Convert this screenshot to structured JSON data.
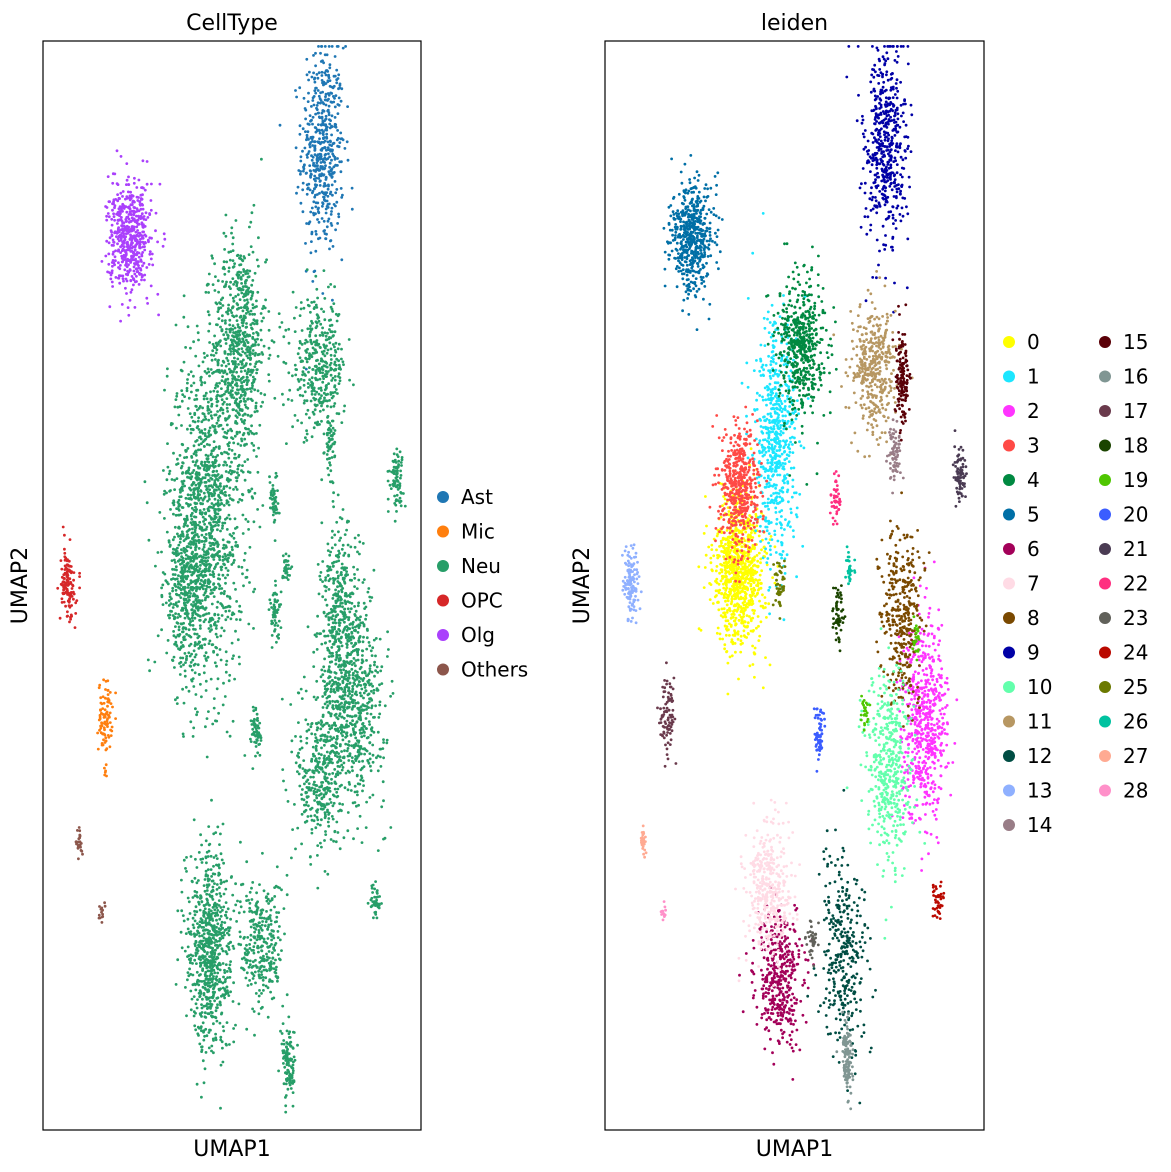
{
  "chart_data": [
    {
      "type": "scatter",
      "title": "CellType",
      "xlabel": "UMAP1",
      "ylabel": "UMAP2",
      "xlim": [
        0,
        10
      ],
      "ylim": [
        0,
        10
      ],
      "grid": false,
      "legend_position": "right",
      "series": [
        {
          "name": "Ast",
          "color": "#1f77b4",
          "clusters": [
            {
              "x": 7.4,
              "y": 9.0,
              "sx": 0.28,
              "sy": 0.48,
              "n": 520
            }
          ]
        },
        {
          "name": "Mic",
          "color": "#ff7f0e",
          "clusters": [
            {
              "x": 1.65,
              "y": 3.8,
              "sx": 0.09,
              "sy": 0.16,
              "n": 90
            },
            {
              "x": 1.65,
              "y": 3.3,
              "sx": 0.02,
              "sy": 0.05,
              "n": 6
            }
          ]
        },
        {
          "name": "Neu",
          "color": "#279e68",
          "clusters": [
            {
              "x": 5.2,
              "y": 7.2,
              "sx": 0.35,
              "sy": 0.5,
              "n": 700
            },
            {
              "x": 4.3,
              "y": 5.6,
              "sx": 0.5,
              "sy": 0.75,
              "n": 1300
            },
            {
              "x": 3.8,
              "y": 4.9,
              "sx": 0.3,
              "sy": 0.35,
              "n": 300
            },
            {
              "x": 7.3,
              "y": 7.0,
              "sx": 0.35,
              "sy": 0.3,
              "n": 380
            },
            {
              "x": 7.6,
              "y": 6.3,
              "sx": 0.07,
              "sy": 0.15,
              "n": 60
            },
            {
              "x": 9.35,
              "y": 6.0,
              "sx": 0.09,
              "sy": 0.13,
              "n": 80
            },
            {
              "x": 6.1,
              "y": 5.8,
              "sx": 0.06,
              "sy": 0.12,
              "n": 50
            },
            {
              "x": 6.45,
              "y": 5.15,
              "sx": 0.05,
              "sy": 0.09,
              "n": 30
            },
            {
              "x": 6.15,
              "y": 4.75,
              "sx": 0.07,
              "sy": 0.12,
              "n": 55
            },
            {
              "x": 5.65,
              "y": 3.65,
              "sx": 0.07,
              "sy": 0.12,
              "n": 60
            },
            {
              "x": 7.85,
              "y": 4.75,
              "sx": 0.26,
              "sy": 0.4,
              "n": 360
            },
            {
              "x": 8.15,
              "y": 3.9,
              "sx": 0.45,
              "sy": 0.45,
              "n": 700
            },
            {
              "x": 7.3,
              "y": 3.2,
              "sx": 0.3,
              "sy": 0.35,
              "n": 300
            },
            {
              "x": 8.8,
              "y": 2.1,
              "sx": 0.07,
              "sy": 0.08,
              "n": 40
            },
            {
              "x": 4.4,
              "y": 2.0,
              "sx": 0.3,
              "sy": 0.35,
              "n": 350
            },
            {
              "x": 4.4,
              "y": 1.4,
              "sx": 0.3,
              "sy": 0.35,
              "n": 400
            },
            {
              "x": 5.8,
              "y": 1.7,
              "sx": 0.28,
              "sy": 0.3,
              "n": 300
            },
            {
              "x": 6.5,
              "y": 0.6,
              "sx": 0.09,
              "sy": 0.17,
              "n": 110
            }
          ]
        },
        {
          "name": "OPC",
          "color": "#d62728",
          "clusters": [
            {
              "x": 0.65,
              "y": 5.0,
              "sx": 0.1,
              "sy": 0.16,
              "n": 130
            }
          ]
        },
        {
          "name": "Olg",
          "color": "#aa40fc",
          "clusters": [
            {
              "x": 2.3,
              "y": 8.2,
              "sx": 0.28,
              "sy": 0.25,
              "n": 540
            }
          ]
        },
        {
          "name": "Others",
          "color": "#8c564b",
          "clusters": [
            {
              "x": 0.95,
              "y": 2.65,
              "sx": 0.04,
              "sy": 0.07,
              "n": 25
            },
            {
              "x": 1.55,
              "y": 2.0,
              "sx": 0.03,
              "sy": 0.05,
              "n": 15
            }
          ]
        }
      ]
    },
    {
      "type": "scatter",
      "title": "leiden",
      "xlabel": "UMAP1",
      "ylabel": "UMAP2",
      "xlim": [
        0,
        10
      ],
      "ylim": [
        0,
        10
      ],
      "grid": false,
      "legend_position": "right",
      "series": [
        {
          "name": "0",
          "color": "#ffff00",
          "clusters": [
            {
              "x": 3.55,
              "y": 5.15,
              "sx": 0.33,
              "sy": 0.35,
              "n": 900
            }
          ]
        },
        {
          "name": "1",
          "color": "#1ce6ff",
          "clusters": [
            {
              "x": 4.5,
              "y": 6.3,
              "sx": 0.28,
              "sy": 0.55,
              "n": 600
            }
          ]
        },
        {
          "name": "2",
          "color": "#ff34ff",
          "clusters": [
            {
              "x": 8.45,
              "y": 3.75,
              "sx": 0.3,
              "sy": 0.45,
              "n": 600
            }
          ]
        },
        {
          "name": "3",
          "color": "#ff4a46",
          "clusters": [
            {
              "x": 3.55,
              "y": 5.9,
              "sx": 0.25,
              "sy": 0.28,
              "n": 500
            }
          ]
        },
        {
          "name": "4",
          "color": "#008941",
          "clusters": [
            {
              "x": 5.2,
              "y": 7.2,
              "sx": 0.3,
              "sy": 0.32,
              "n": 520
            }
          ]
        },
        {
          "name": "5",
          "color": "#006fa6",
          "clusters": [
            {
              "x": 2.3,
              "y": 8.2,
              "sx": 0.28,
              "sy": 0.25,
              "n": 540
            }
          ]
        },
        {
          "name": "6",
          "color": "#a30059",
          "clusters": [
            {
              "x": 4.6,
              "y": 1.4,
              "sx": 0.3,
              "sy": 0.3,
              "n": 420
            }
          ]
        },
        {
          "name": "7",
          "color": "#ffdbe5",
          "clusters": [
            {
              "x": 4.3,
              "y": 2.2,
              "sx": 0.3,
              "sy": 0.3,
              "n": 380
            }
          ]
        },
        {
          "name": "8",
          "color": "#7a4900",
          "clusters": [
            {
              "x": 7.85,
              "y": 4.75,
              "sx": 0.26,
              "sy": 0.4,
              "n": 360
            }
          ]
        },
        {
          "name": "9",
          "color": "#0000a6",
          "clusters": [
            {
              "x": 7.4,
              "y": 9.0,
              "sx": 0.28,
              "sy": 0.48,
              "n": 520
            }
          ]
        },
        {
          "name": "10",
          "color": "#63ffac",
          "clusters": [
            {
              "x": 7.5,
              "y": 3.3,
              "sx": 0.3,
              "sy": 0.45,
              "n": 450
            }
          ]
        },
        {
          "name": "11",
          "color": "#b79762",
          "clusters": [
            {
              "x": 7.1,
              "y": 7.0,
              "sx": 0.3,
              "sy": 0.3,
              "n": 400
            }
          ]
        },
        {
          "name": "12",
          "color": "#004d43",
          "clusters": [
            {
              "x": 6.3,
              "y": 1.6,
              "sx": 0.32,
              "sy": 0.45,
              "n": 330
            }
          ]
        },
        {
          "name": "13",
          "color": "#8fb0ff",
          "clusters": [
            {
              "x": 0.7,
              "y": 5.0,
              "sx": 0.1,
              "sy": 0.16,
              "n": 130
            }
          ]
        },
        {
          "name": "14",
          "color": "#997d87",
          "clusters": [
            {
              "x": 7.65,
              "y": 6.2,
              "sx": 0.08,
              "sy": 0.15,
              "n": 75
            }
          ]
        },
        {
          "name": "15",
          "color": "#5a0007",
          "clusters": [
            {
              "x": 7.85,
              "y": 6.95,
              "sx": 0.09,
              "sy": 0.22,
              "n": 150
            }
          ]
        },
        {
          "name": "16",
          "color": "#809693",
          "clusters": [
            {
              "x": 6.4,
              "y": 0.65,
              "sx": 0.08,
              "sy": 0.17,
              "n": 110
            }
          ]
        },
        {
          "name": "17",
          "color": "#6a3a4c",
          "clusters": [
            {
              "x": 1.65,
              "y": 3.8,
              "sx": 0.09,
              "sy": 0.16,
              "n": 90
            }
          ]
        },
        {
          "name": "18",
          "color": "#1b4400",
          "clusters": [
            {
              "x": 6.15,
              "y": 4.75,
              "sx": 0.07,
              "sy": 0.12,
              "n": 55
            }
          ]
        },
        {
          "name": "19",
          "color": "#4fc601",
          "clusters": [
            {
              "x": 8.2,
              "y": 4.5,
              "sx": 0.05,
              "sy": 0.07,
              "n": 25
            },
            {
              "x": 6.85,
              "y": 3.85,
              "sx": 0.05,
              "sy": 0.08,
              "n": 25
            }
          ]
        },
        {
          "name": "20",
          "color": "#3b5dff",
          "clusters": [
            {
              "x": 5.65,
              "y": 3.65,
              "sx": 0.07,
              "sy": 0.12,
              "n": 60
            }
          ]
        },
        {
          "name": "21",
          "color": "#4a3b53",
          "clusters": [
            {
              "x": 9.35,
              "y": 6.0,
              "sx": 0.09,
              "sy": 0.13,
              "n": 80
            }
          ]
        },
        {
          "name": "22",
          "color": "#ff2f80",
          "clusters": [
            {
              "x": 6.1,
              "y": 5.8,
              "sx": 0.06,
              "sy": 0.12,
              "n": 50
            }
          ]
        },
        {
          "name": "23",
          "color": "#61615a",
          "clusters": [
            {
              "x": 5.45,
              "y": 1.75,
              "sx": 0.07,
              "sy": 0.09,
              "n": 35
            }
          ]
        },
        {
          "name": "24",
          "color": "#ba0900",
          "clusters": [
            {
              "x": 8.8,
              "y": 2.1,
              "sx": 0.07,
              "sy": 0.08,
              "n": 40
            }
          ]
        },
        {
          "name": "25",
          "color": "#6b7900",
          "clusters": [
            {
              "x": 4.6,
              "y": 5.0,
              "sx": 0.06,
              "sy": 0.12,
              "n": 45
            }
          ]
        },
        {
          "name": "26",
          "color": "#00c2a0",
          "clusters": [
            {
              "x": 6.45,
              "y": 5.15,
              "sx": 0.05,
              "sy": 0.09,
              "n": 30
            }
          ]
        },
        {
          "name": "27",
          "color": "#ffaa92",
          "clusters": [
            {
              "x": 1.0,
              "y": 2.65,
              "sx": 0.04,
              "sy": 0.07,
              "n": 25
            }
          ]
        },
        {
          "name": "28",
          "color": "#ff90c9",
          "clusters": [
            {
              "x": 1.55,
              "y": 2.0,
              "sx": 0.03,
              "sy": 0.05,
              "n": 15
            }
          ]
        }
      ]
    }
  ]
}
